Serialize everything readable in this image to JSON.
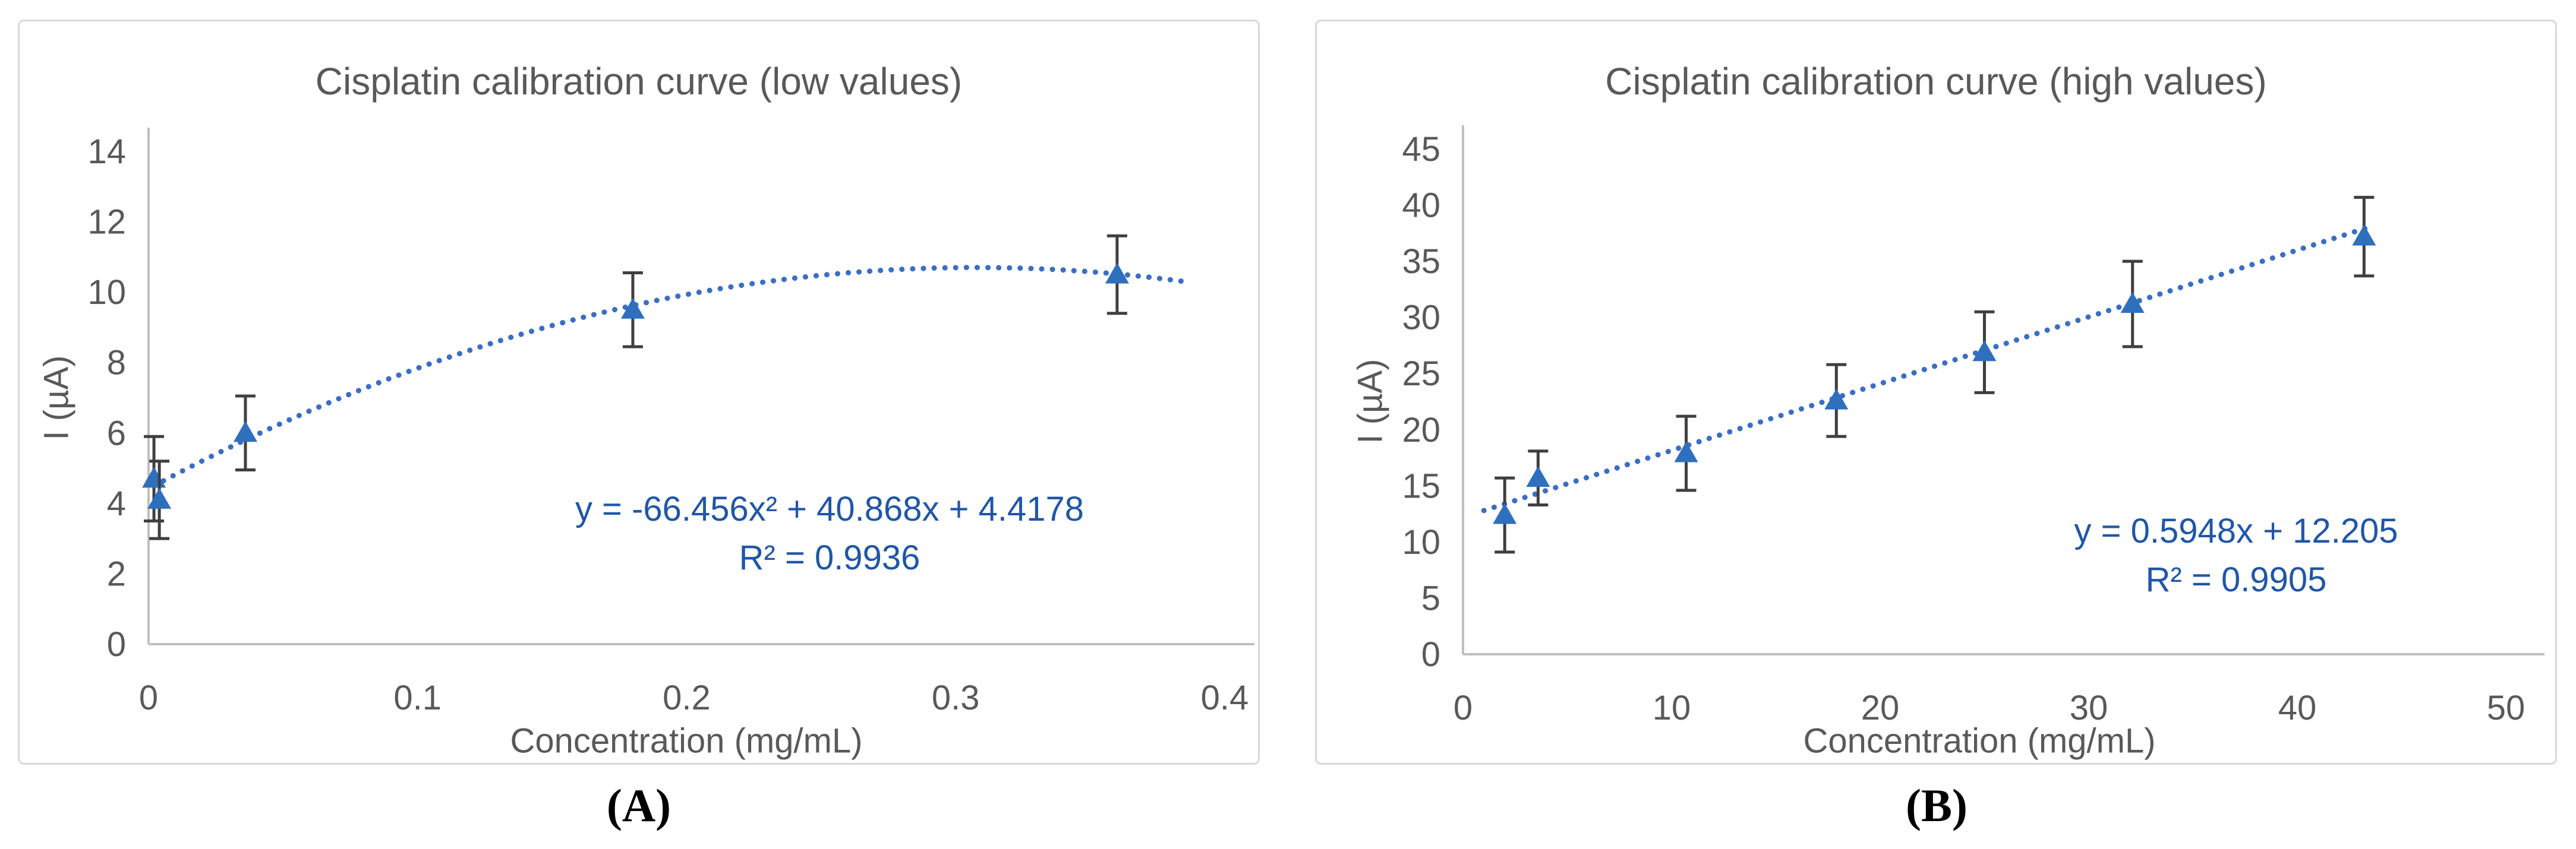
{
  "page": {
    "background": "#ffffff"
  },
  "chart_data": [
    {
      "type": "scatter",
      "panel_label": "(A)",
      "title": "Cisplatin calibration curve (low values)",
      "xlabel": "Concentration (mg/mL)",
      "ylabel": "I (µA)",
      "xlim": [
        0,
        0.4
      ],
      "ylim": [
        0,
        14
      ],
      "x_ticks": [
        0,
        0.1,
        0.2,
        0.3,
        0.4
      ],
      "x_tick_labels": [
        "0",
        "0.1",
        "0.2",
        "0.3",
        "0.4"
      ],
      "y_ticks": [
        0,
        2,
        4,
        6,
        8,
        10,
        12,
        14
      ],
      "y_tick_labels": [
        "0",
        "2",
        "4",
        "6",
        "8",
        "10",
        "12",
        "14"
      ],
      "grid": false,
      "legend": "none",
      "marker": "triangle-up",
      "marker_color": "#2e6fbe",
      "error_bar_color": "#3f3f3f",
      "axis_color": "#bfbfbf",
      "text_color": "#595959",
      "equation_color": "#1f56a8",
      "points": [
        {
          "x": 0.002,
          "y": 4.7,
          "err": 1.2
        },
        {
          "x": 0.004,
          "y": 4.1,
          "err": 1.1
        },
        {
          "x": 0.036,
          "y": 6.0,
          "err": 1.05
        },
        {
          "x": 0.18,
          "y": 9.5,
          "err": 1.05
        },
        {
          "x": 0.36,
          "y": 10.5,
          "err": 1.1
        }
      ],
      "trendline": {
        "kind": "polynomial-order-2",
        "coeffs": [
          -66.456,
          40.868,
          4.4178
        ],
        "domain": [
          0.002,
          0.386
        ],
        "style": "dotted",
        "color": "#3a6ec6"
      },
      "equation": "y = -66.456x² + 40.868x + 4.4178",
      "r2": "R² = 0.9936"
    },
    {
      "type": "scatter",
      "panel_label": "(B)",
      "title": "Cisplatin calibration curve (high values)",
      "xlabel": "Concentration (mg/mL)",
      "ylabel": "I (µA)",
      "xlim": [
        0,
        50
      ],
      "ylim": [
        0,
        45
      ],
      "x_ticks": [
        0,
        10,
        20,
        30,
        40,
        50
      ],
      "x_tick_labels": [
        "0",
        "10",
        "20",
        "30",
        "40",
        "50"
      ],
      "y_ticks": [
        0,
        5,
        10,
        15,
        20,
        25,
        30,
        35,
        40,
        45
      ],
      "y_tick_labels": [
        "0",
        "5",
        "10",
        "15",
        "20",
        "25",
        "30",
        "35",
        "40",
        "45"
      ],
      "grid": false,
      "legend": "none",
      "marker": "triangle-up",
      "marker_color": "#2e6fbe",
      "error_bar_color": "#3f3f3f",
      "axis_color": "#bfbfbf",
      "text_color": "#595959",
      "equation_color": "#1f56a8",
      "points": [
        {
          "x": 2.0,
          "y": 12.4,
          "err": 3.3
        },
        {
          "x": 3.6,
          "y": 15.7,
          "err": 2.4
        },
        {
          "x": 10.7,
          "y": 17.9,
          "err": 3.3
        },
        {
          "x": 17.9,
          "y": 22.6,
          "err": 3.2
        },
        {
          "x": 25.0,
          "y": 26.9,
          "err": 3.6
        },
        {
          "x": 32.1,
          "y": 31.2,
          "err": 3.8
        },
        {
          "x": 43.2,
          "y": 37.2,
          "err": 3.5
        }
      ],
      "trendline": {
        "kind": "linear",
        "coeffs": [
          0.5948,
          12.205
        ],
        "domain": [
          1.0,
          43.6
        ],
        "style": "dotted",
        "color": "#3a6ec6"
      },
      "equation": "y = 0.5948x + 12.205",
      "r2": "R² = 0.9905"
    }
  ]
}
